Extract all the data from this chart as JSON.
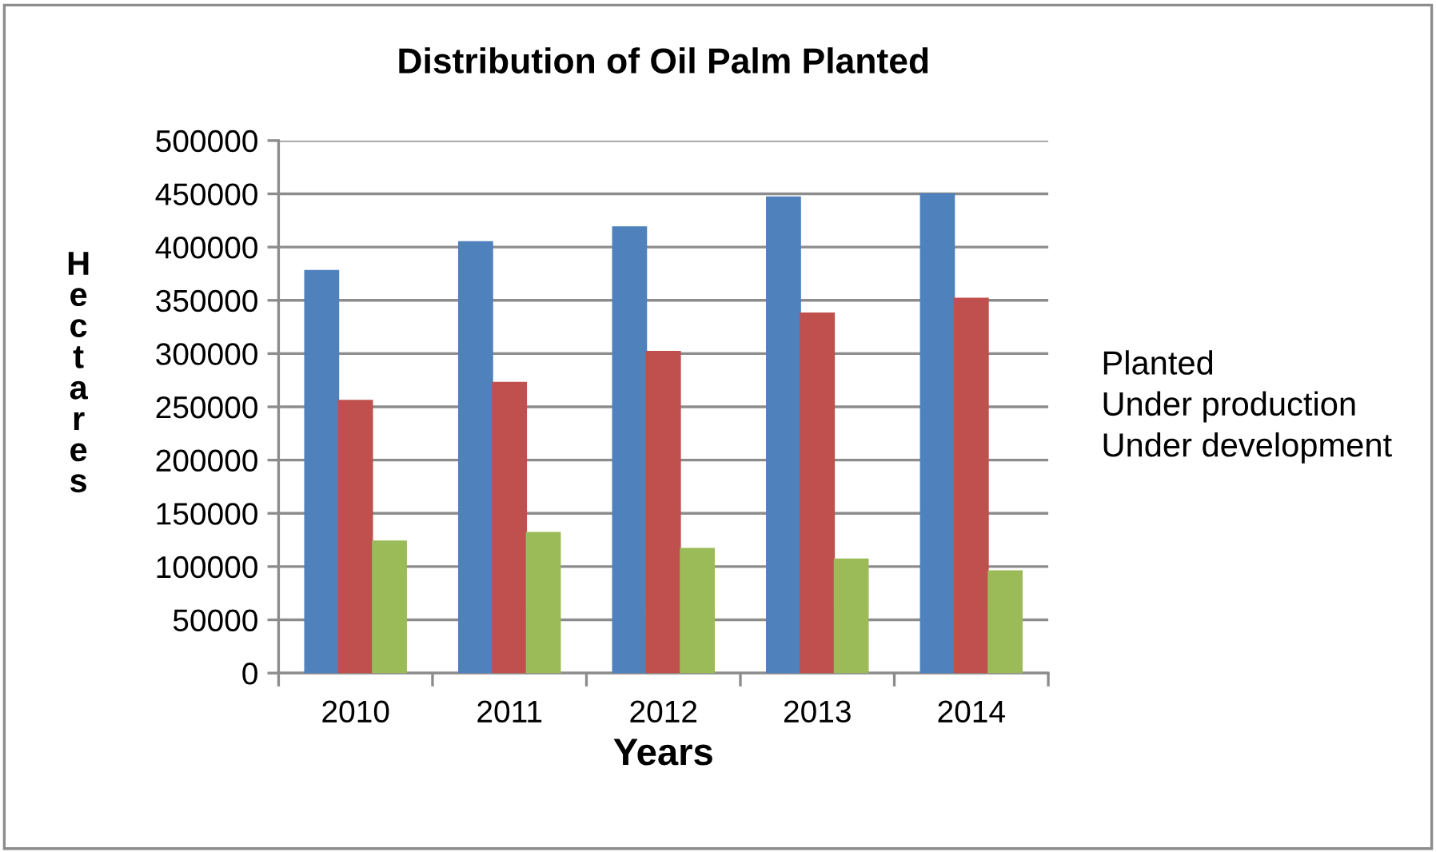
{
  "chart_data": {
    "type": "bar",
    "title": "Distribution of Oil Palm Planted",
    "xlabel": "Years",
    "ylabel": "Hectares",
    "categories": [
      "2010",
      "2011",
      "2012",
      "2013",
      "2014"
    ],
    "series": [
      {
        "name": "Planted",
        "color": "#4f81bd",
        "values": [
          378000,
          405000,
          419000,
          447000,
          450000
        ]
      },
      {
        "name": "Under production",
        "color": "#c0504d",
        "values": [
          256000,
          273000,
          302000,
          338000,
          352000
        ]
      },
      {
        "name": "Under development",
        "color": "#9bbb59",
        "values": [
          124000,
          132000,
          117000,
          107000,
          96000
        ]
      }
    ],
    "ylim": [
      0,
      500000
    ],
    "yticks": [
      0,
      50000,
      100000,
      150000,
      200000,
      250000,
      300000,
      350000,
      400000,
      450000,
      500000
    ],
    "grid": "y",
    "legend": "right"
  }
}
